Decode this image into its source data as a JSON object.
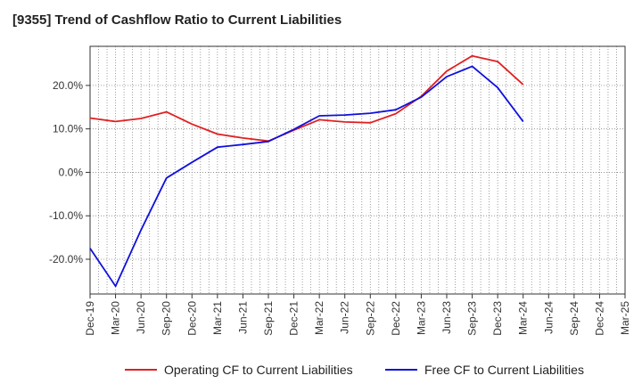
{
  "chart_data": {
    "type": "line",
    "title": "[9355]  Trend of Cashflow Ratio to Current Liabilities",
    "xlabel": "",
    "ylabel": "",
    "categories": [
      "Dec-19",
      "Mar-20",
      "Jun-20",
      "Sep-20",
      "Dec-20",
      "Mar-21",
      "Jun-21",
      "Sep-21",
      "Dec-21",
      "Mar-22",
      "Jun-22",
      "Sep-22",
      "Dec-22",
      "Mar-23",
      "Jun-23",
      "Sep-23",
      "Dec-23",
      "Mar-24",
      "Jun-24",
      "Sep-24",
      "Dec-24",
      "Mar-25"
    ],
    "ylim": [
      -28,
      29
    ],
    "y_ticks": [
      -20,
      -10,
      0,
      10,
      20
    ],
    "y_tick_labels": [
      "-20.0%",
      "-10.0%",
      "0.0%",
      "10.0%",
      "20.0%"
    ],
    "grid": true,
    "legend_position": "bottom",
    "series": [
      {
        "name": "Operating CF to Current Liabilities",
        "color": "#e02020",
        "values": [
          12.5,
          11.7,
          12.4,
          13.9,
          11.1,
          8.8,
          7.9,
          7.2,
          9.7,
          12.1,
          11.6,
          11.4,
          13.5,
          17.5,
          23.3,
          26.8,
          25.5,
          20.2,
          null,
          null,
          null,
          null
        ]
      },
      {
        "name": "Free CF to Current Liabilities",
        "color": "#1010dd",
        "values": [
          -17.5,
          -26.2,
          -13.3,
          -1.3,
          2.3,
          5.8,
          6.4,
          7.1,
          9.9,
          13.0,
          13.2,
          13.6,
          14.4,
          17.3,
          22.0,
          24.4,
          19.5,
          11.7,
          null,
          null,
          null,
          null
        ]
      }
    ]
  }
}
